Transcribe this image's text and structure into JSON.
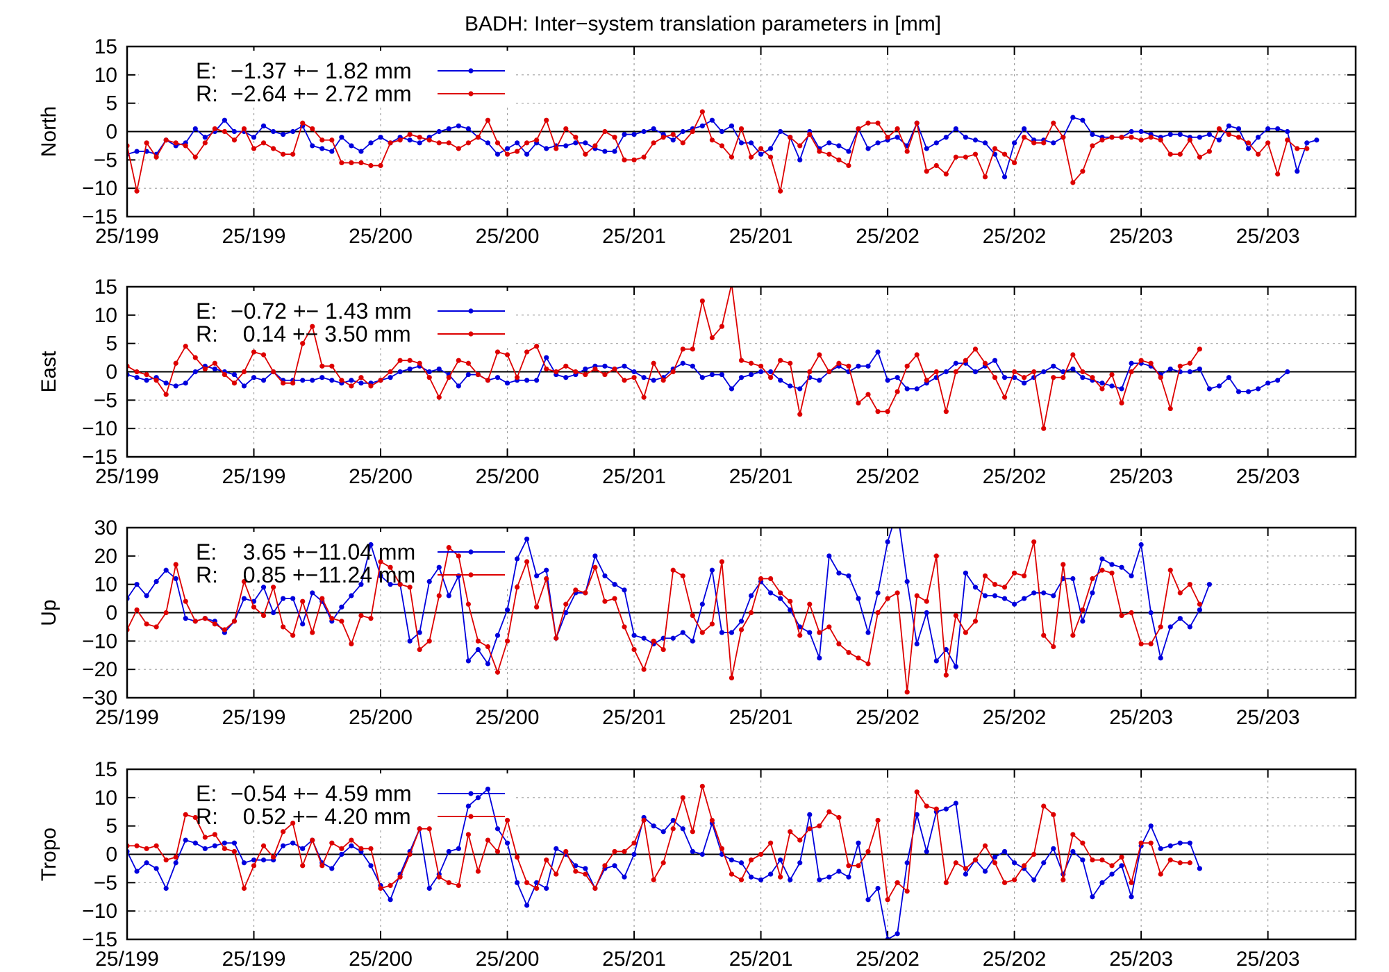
{
  "figure": {
    "title": "BADH: Inter−system translation parameters in [mm]"
  },
  "colors": {
    "E": "#0000dd",
    "R": "#dd0000"
  },
  "chart_data": [
    {
      "type": "line",
      "ylabel": "North",
      "ylim": [
        -15,
        15
      ],
      "yticks": [
        "15",
        "10",
        "5",
        "0",
        "−5",
        "−10",
        "−15"
      ],
      "xlim": [
        0,
        126
      ],
      "xtick_positions": [
        0,
        13,
        26,
        39,
        52,
        65,
        78,
        91,
        104,
        117
      ],
      "xtick_labels": [
        "25/199",
        "25/199",
        "25/200",
        "25/200",
        "25/201",
        "25/201",
        "25/202",
        "25/202",
        "25/203",
        "25/203"
      ],
      "grid": true,
      "legend": [
        {
          "label": "E:",
          "value": "−1.37 +− 1.82 mm"
        },
        {
          "label": "R:",
          "value": "−2.64 +− 2.72 mm"
        }
      ],
      "series": [
        {
          "key": "E",
          "values": [
            -4,
            -3.5,
            -3.5,
            -4,
            -1.5,
            -2.5,
            -2,
            0.5,
            -1,
            0,
            2,
            0,
            0,
            -1,
            1,
            0,
            -0.5,
            0,
            1,
            -2.5,
            -3,
            -3.5,
            -1,
            -2.5,
            -3.5,
            -2,
            -1,
            -2,
            -1,
            -1.5,
            -2,
            -1,
            0,
            0.5,
            1,
            0.5,
            -1,
            -2,
            -4,
            -3,
            -2,
            -4,
            -2,
            -3,
            -2.5,
            -2.5,
            -2,
            -2,
            -3,
            -3.5,
            -3.5,
            -0.5,
            -0.5,
            0,
            0.5,
            -0.5,
            -1.5,
            0,
            0.5,
            1,
            2,
            0,
            1,
            -2,
            -2,
            -4,
            -3,
            0,
            -1,
            -5,
            0,
            -3,
            -2,
            -2.5,
            -3.5,
            0.5,
            -3,
            -2,
            -1.5,
            -1,
            -2.5,
            1.5,
            -3,
            -2,
            -1,
            0.5,
            -1,
            -1.5,
            -2,
            -4,
            -8,
            -2,
            0.5,
            -1.5,
            -1.5,
            -2,
            -1,
            2.5,
            2,
            -0.5,
            -1,
            -1,
            -1,
            0,
            0,
            -0.5,
            -1,
            -0.5,
            -0.5,
            -1,
            -1,
            -0.5,
            -1.5,
            1,
            0.5,
            -3,
            -1,
            0.5,
            0.5,
            0,
            -7,
            -2,
            -1.5
          ]
        },
        {
          "key": "R",
          "values": [
            -2.5,
            -10.5,
            -2,
            -4.5,
            -1.5,
            -2,
            -2.5,
            -4.5,
            -2,
            0.5,
            0,
            -1.5,
            0.5,
            -3,
            -2,
            -3,
            -4,
            -4,
            1.5,
            0.5,
            -1.5,
            -1.5,
            -5.5,
            -5.5,
            -5.5,
            -6,
            -6,
            -2,
            -1.5,
            -0.5,
            -1,
            -1.5,
            -2,
            -2,
            -3,
            -2,
            -1,
            2,
            -2,
            -4,
            -3.5,
            -2,
            -1.5,
            2,
            -3,
            0.5,
            -1,
            -4,
            -2.5,
            0,
            -1,
            -5,
            -5,
            -4.5,
            -2,
            -1,
            -0.5,
            -2,
            0,
            3.5,
            -1.5,
            -2.5,
            -4.5,
            0.5,
            -4.5,
            -3,
            -4.5,
            -10.5,
            -1,
            -2.5,
            -0.5,
            -3.5,
            -4,
            -5,
            -6,
            0.5,
            1.5,
            1.5,
            -1,
            0.5,
            -3.5,
            1.5,
            -7,
            -6,
            -7.5,
            -4.5,
            -4.5,
            -4,
            -8,
            -3,
            -4,
            -5.5,
            -1,
            -2,
            -2,
            1.5,
            -1,
            -9,
            -7,
            -2.5,
            -1.5,
            -1,
            -1,
            -1,
            -1.5,
            -1,
            -1.5,
            -4,
            -4,
            -1.5,
            -4.5,
            -3.5,
            0.5,
            -0.5,
            -1,
            -2,
            -4,
            -2,
            -7.5,
            -1.5,
            -3,
            -3
          ]
        }
      ]
    },
    {
      "type": "line",
      "ylabel": "East",
      "ylim": [
        -15,
        15
      ],
      "yticks": [
        "15",
        "10",
        "5",
        "0",
        "−5",
        "−10",
        "−15"
      ],
      "xlim": [
        0,
        126
      ],
      "xtick_positions": [
        0,
        13,
        26,
        39,
        52,
        65,
        78,
        91,
        104,
        117
      ],
      "xtick_labels": [
        "25/199",
        "25/199",
        "25/200",
        "25/200",
        "25/201",
        "25/201",
        "25/202",
        "25/202",
        "25/203",
        "25/203"
      ],
      "grid": true,
      "legend": [
        {
          "label": "E:",
          "value": "−0.72 +− 1.43 mm"
        },
        {
          "label": "R:",
          "value": "  0.14 +− 3.50 mm"
        }
      ],
      "series": [
        {
          "key": "E",
          "values": [
            -0.5,
            -1,
            -1.5,
            -1,
            -2,
            -2.5,
            -2,
            0,
            1,
            0.5,
            0,
            -0.5,
            -2.5,
            -1,
            -1.5,
            0,
            -1.5,
            -1.5,
            -1.5,
            -1.5,
            -1,
            -1.5,
            -2,
            -1.5,
            -2,
            -2,
            -1.5,
            -1,
            0,
            0.5,
            1,
            0,
            0.5,
            -0.5,
            -2.5,
            -0.5,
            -0.5,
            -1.5,
            -1,
            -2,
            -1.5,
            -1.5,
            -1.5,
            2.5,
            -0.5,
            -1,
            -0.5,
            0.5,
            1,
            1,
            0.5,
            1,
            0,
            -1,
            -1.5,
            -1,
            0.5,
            1.5,
            1,
            -1,
            -0.5,
            -0.5,
            -3,
            -1,
            -0.5,
            0,
            0,
            -1.5,
            -2.5,
            -3,
            -1,
            -1.5,
            0,
            1,
            0,
            1,
            1,
            3.5,
            -1.5,
            -1,
            -3,
            -3,
            -2,
            -1,
            0,
            1.5,
            1.5,
            0,
            1,
            2,
            -1,
            -1,
            -2,
            -1,
            0,
            1,
            0,
            0.5,
            -1,
            -1.5,
            -2,
            -2.5,
            -3,
            1.5,
            1.5,
            1,
            -0.5,
            0.5,
            0,
            0,
            0.5,
            -3,
            -2.5,
            -1,
            -3.5,
            -3.5,
            -3,
            -2,
            -1.5,
            0
          ]
        },
        {
          "key": "R",
          "values": [
            1,
            0,
            -0.5,
            -1.5,
            -4,
            1.5,
            4.5,
            2.5,
            0.5,
            1.5,
            -0.5,
            -2,
            0,
            3.5,
            3,
            0,
            -2,
            -2,
            5,
            8,
            1,
            1,
            -1.5,
            -2.5,
            -1,
            -2.5,
            -1.5,
            0,
            2,
            2,
            1.5,
            -1,
            -4.5,
            -1,
            2,
            1.5,
            -0.5,
            -1.5,
            3.5,
            3,
            -1,
            3.5,
            4.5,
            0.5,
            0,
            1,
            0,
            -0.5,
            0.5,
            -0.5,
            0.5,
            -1.5,
            -1,
            -4.5,
            1.5,
            -1.5,
            0,
            4,
            4,
            12.5,
            6,
            8,
            15.5,
            2,
            1.5,
            1,
            -1,
            2,
            1.5,
            -7.5,
            0,
            3,
            0,
            1.5,
            1,
            -5.5,
            -4,
            -7,
            -7,
            -3.5,
            1,
            3,
            -1.5,
            0,
            -7,
            0,
            2,
            4,
            1.5,
            -1,
            -4.5,
            0,
            -1,
            0,
            -10,
            -1,
            -1,
            3,
            0,
            -1,
            -3,
            -0.5,
            -5.5,
            0,
            2,
            1.5,
            -1,
            -6.5,
            1,
            1.5,
            4
          ]
        }
      ]
    },
    {
      "type": "line",
      "ylabel": "Up",
      "ylim": [
        -30,
        30
      ],
      "yticks": [
        "30",
        "20",
        "10",
        "0",
        "−10",
        "−20",
        "−30"
      ],
      "xlim": [
        0,
        126
      ],
      "xtick_positions": [
        0,
        13,
        26,
        39,
        52,
        65,
        78,
        91,
        104,
        117
      ],
      "xtick_labels": [
        "25/199",
        "25/199",
        "25/200",
        "25/200",
        "25/201",
        "25/201",
        "25/202",
        "25/202",
        "25/203",
        "25/203"
      ],
      "grid": true,
      "legend": [
        {
          "label": "E:",
          "value": "  3.65 +−11.04 mm"
        },
        {
          "label": "R:",
          "value": "  0.85 +−11.24 mm"
        }
      ],
      "series": [
        {
          "key": "E",
          "values": [
            5,
            10,
            6,
            11,
            15,
            12,
            -2,
            -3,
            -2,
            -3,
            -7,
            -3,
            5,
            4,
            9,
            0,
            5,
            5,
            -4,
            7,
            4,
            -3,
            2,
            6,
            10,
            24,
            13,
            10,
            10,
            -10,
            -7,
            11,
            16,
            6,
            13,
            -17,
            -13,
            -18,
            -8,
            1,
            19,
            26,
            13,
            15,
            -9,
            0,
            7,
            7,
            20,
            13,
            10,
            8,
            -8,
            -9,
            -11,
            -9,
            -9,
            -7,
            -10,
            3,
            15,
            -7,
            -7,
            -3,
            6,
            11,
            7,
            5,
            1,
            -5,
            -7,
            -16,
            20,
            14,
            13,
            5,
            -7,
            7,
            25,
            36,
            11,
            -11,
            0,
            -17,
            -13,
            -19,
            14,
            9,
            6,
            6,
            5,
            3,
            5,
            7,
            7,
            6,
            12,
            12,
            -3,
            7,
            19,
            17,
            16,
            13,
            24,
            0,
            -16,
            -5,
            -2,
            -5,
            1,
            10
          ]
        },
        {
          "key": "R",
          "values": [
            -6,
            1,
            -4,
            -5,
            0,
            17,
            4,
            -3,
            -2,
            -4,
            -6,
            -3,
            11,
            2,
            -1,
            9,
            -5,
            -8,
            4,
            -7,
            5,
            -2,
            -3,
            -11,
            -1,
            -2,
            18,
            16,
            10,
            9,
            -13,
            -10,
            6,
            23,
            20,
            3,
            -10,
            -12,
            -21,
            -10,
            9,
            18,
            2,
            12,
            -9,
            3,
            8,
            7,
            16,
            4,
            5,
            -5,
            -13,
            -20,
            -10,
            -13,
            15,
            13,
            -1,
            -7,
            -4,
            18,
            -23,
            -6,
            0,
            12,
            12,
            7,
            4,
            -8,
            3,
            -7,
            -5,
            -11,
            -14,
            -16,
            -18,
            0,
            5,
            7,
            -28,
            6,
            4,
            20,
            -22,
            -1,
            -7,
            -3,
            13,
            10,
            9,
            14,
            13,
            25,
            -8,
            -12,
            17,
            -8,
            1,
            12,
            15,
            14,
            -1,
            0,
            -11,
            -11,
            -5,
            15,
            7,
            10,
            3
          ]
        }
      ]
    },
    {
      "type": "line",
      "ylabel": "Tropo",
      "ylim": [
        -15,
        15
      ],
      "yticks": [
        "15",
        "10",
        "5",
        "0",
        "−5",
        "−10",
        "−15"
      ],
      "xlim": [
        0,
        126
      ],
      "xtick_positions": [
        0,
        13,
        26,
        39,
        52,
        65,
        78,
        91,
        104,
        117
      ],
      "xtick_labels": [
        "25/199",
        "25/199",
        "25/200",
        "25/200",
        "25/201",
        "25/201",
        "25/202",
        "25/202",
        "25/203",
        "25/203"
      ],
      "grid": true,
      "legend": [
        {
          "label": "E:",
          "value": "−0.54 +− 4.59 mm"
        },
        {
          "label": "R:",
          "value": "  0.52 +− 4.20 mm"
        }
      ],
      "series": [
        {
          "key": "E",
          "values": [
            0.5,
            -3,
            -1.5,
            -2.5,
            -6,
            -1.5,
            2.5,
            2,
            1,
            1.5,
            2,
            2,
            -1.5,
            -1,
            -1,
            -1,
            1.5,
            2,
            1,
            2.5,
            -1.5,
            -2.5,
            0,
            1.5,
            0.5,
            -2,
            -5.5,
            -8,
            -3.5,
            0.5,
            4.5,
            -6,
            -3.5,
            0.5,
            1,
            8.5,
            10,
            11.5,
            4.5,
            2,
            -5,
            -9,
            -5,
            -6,
            1,
            0,
            -2,
            -2.5,
            -6,
            -2.5,
            -2,
            -4,
            0,
            6.5,
            5,
            4,
            6,
            4.5,
            0.5,
            0,
            5.5,
            0,
            -1,
            -1.5,
            -4,
            -4.5,
            -3.5,
            -1,
            -4.5,
            -1.5,
            7,
            -4.5,
            -4,
            -3,
            -4,
            2,
            -8,
            -6,
            -15,
            -14,
            -1.5,
            7,
            0.5,
            7.5,
            8,
            9,
            -3.5,
            -1,
            -3,
            -0.5,
            0.5,
            -1.5,
            -2.5,
            -4.5,
            -1.5,
            1,
            -3.5,
            0.5,
            -1,
            -7.5,
            -5,
            -3.5,
            -2,
            -7.5,
            1.5,
            5,
            1,
            1.5,
            2,
            2,
            -2.5
          ]
        },
        {
          "key": "R",
          "values": [
            1.5,
            1.5,
            1,
            1.5,
            -1,
            -0.5,
            7,
            6.5,
            3,
            3.5,
            1,
            0.5,
            -6,
            -2,
            1.5,
            -0.5,
            4,
            5.5,
            -2,
            2.5,
            -2,
            2,
            1,
            2.5,
            1,
            1,
            -6,
            -5.5,
            -4,
            0,
            4.5,
            4.5,
            -4,
            -5,
            -5.5,
            3.5,
            -3,
            2.5,
            0.5,
            6,
            -0.5,
            -5,
            -6,
            -1,
            -3.5,
            0.5,
            -3,
            -3.5,
            -6,
            -2,
            0.5,
            0.5,
            2,
            6,
            -4.5,
            -1.5,
            4.5,
            10,
            4,
            12,
            6,
            1,
            -3.5,
            -4.5,
            -1,
            0,
            2,
            -4,
            4,
            2.5,
            4.5,
            5,
            7.5,
            6.5,
            -2,
            -2,
            0.5,
            6,
            -8,
            -5,
            -6.5,
            11,
            8.5,
            8,
            -5,
            -1.5,
            -2.5,
            -1,
            1.5,
            -1.5,
            -5,
            -4.5,
            -2,
            0,
            8.5,
            7,
            -4.5,
            3.5,
            2,
            -1,
            -1,
            -2,
            -0.5,
            -5,
            2,
            2,
            -3.5,
            -1,
            -1.5,
            -1.5
          ]
        }
      ]
    }
  ]
}
